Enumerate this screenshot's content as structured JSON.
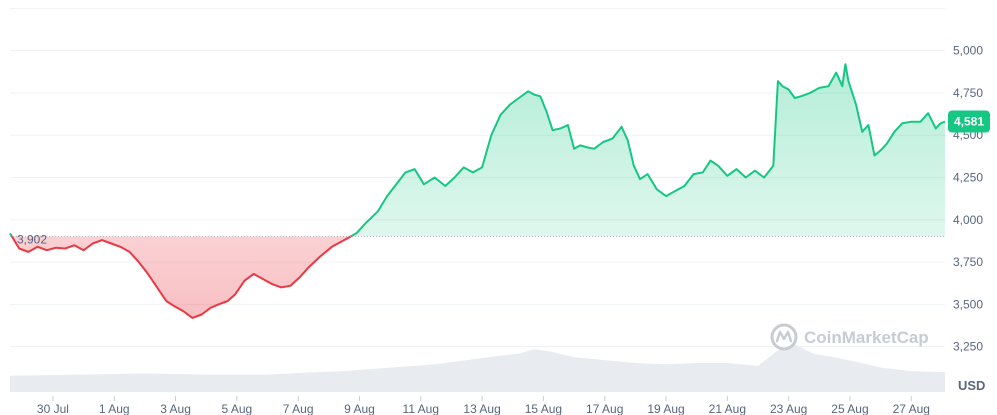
{
  "chart_data": {
    "type": "area",
    "currency_label": "USD",
    "watermark": "CoinMarketCap",
    "reference_value": 3902,
    "reference_label": "3,902",
    "current_value": 4581,
    "current_label": "4,581",
    "ylim": [
      3100,
      5270
    ],
    "y_ticks": [
      {
        "value": 3250,
        "label": "3,250"
      },
      {
        "value": 3500,
        "label": "3,500"
      },
      {
        "value": 3750,
        "label": "3,750"
      },
      {
        "value": 4000,
        "label": "4,000"
      },
      {
        "value": 4250,
        "label": "4,250"
      },
      {
        "value": 4500,
        "label": "4,500"
      },
      {
        "value": 4750,
        "label": "4,750"
      },
      {
        "value": 5000,
        "label": "5,000"
      }
    ],
    "x_range": [
      28.6,
      59.1
    ],
    "x_ticks": [
      {
        "value": 30,
        "label": "30 Jul"
      },
      {
        "value": 32,
        "label": "1 Aug"
      },
      {
        "value": 34,
        "label": "3 Aug"
      },
      {
        "value": 36,
        "label": "5 Aug"
      },
      {
        "value": 38,
        "label": "7 Aug"
      },
      {
        "value": 40,
        "label": "9 Aug"
      },
      {
        "value": 42,
        "label": "11 Aug"
      },
      {
        "value": 44,
        "label": "13 Aug"
      },
      {
        "value": 46,
        "label": "15 Aug"
      },
      {
        "value": 48,
        "label": "17 Aug"
      },
      {
        "value": 50,
        "label": "19 Aug"
      },
      {
        "value": 52,
        "label": "21 Aug"
      },
      {
        "value": 54,
        "label": "23 Aug"
      },
      {
        "value": 56,
        "label": "25 Aug"
      },
      {
        "value": 58,
        "label": "27 Aug"
      }
    ],
    "series": [
      {
        "x": [
          28.6,
          28.9,
          29.2,
          29.5,
          29.8,
          30.1,
          30.4,
          30.7,
          31.0,
          31.3,
          31.6,
          31.9,
          32.2,
          32.5,
          32.8,
          33.1,
          33.4,
          33.7,
          33.95,
          34.25,
          34.55,
          34.85,
          35.15,
          35.4,
          35.7,
          35.95,
          36.25,
          36.55,
          36.85,
          37.15,
          37.45,
          37.75,
          38.05,
          38.35,
          38.7,
          39.1,
          39.5,
          39.9,
          40.2,
          40.6,
          40.9,
          41.2,
          41.5,
          41.8,
          42.1,
          42.45,
          42.8,
          43.1,
          43.4,
          43.7,
          44.0,
          44.3,
          44.6,
          44.9,
          45.2,
          45.5,
          45.7,
          45.9,
          46.1,
          46.3,
          46.55,
          46.8,
          47.0,
          47.2,
          47.4,
          47.65,
          47.95,
          48.25,
          48.55,
          48.75,
          48.95,
          49.15,
          49.4,
          49.7,
          50.0,
          50.3,
          50.6,
          50.9,
          51.2,
          51.45,
          51.7,
          52.0,
          52.3,
          52.6,
          52.9,
          53.2,
          53.5,
          53.65,
          53.8,
          54.0,
          54.2,
          54.4,
          54.7,
          55.0,
          55.3,
          55.55,
          55.75,
          55.85,
          55.95,
          56.2,
          56.4,
          56.6,
          56.8,
          57.0,
          57.2,
          57.45,
          57.7,
          58.0,
          58.3,
          58.55,
          58.8,
          58.95,
          59.1
        ],
        "y": [
          3920,
          3830,
          3810,
          3840,
          3820,
          3835,
          3830,
          3850,
          3820,
          3860,
          3880,
          3860,
          3840,
          3810,
          3750,
          3680,
          3600,
          3520,
          3490,
          3460,
          3420,
          3440,
          3480,
          3500,
          3520,
          3560,
          3640,
          3680,
          3650,
          3620,
          3600,
          3610,
          3660,
          3720,
          3780,
          3840,
          3880,
          3920,
          3980,
          4050,
          4140,
          4210,
          4280,
          4300,
          4210,
          4250,
          4200,
          4250,
          4310,
          4280,
          4310,
          4500,
          4620,
          4680,
          4720,
          4760,
          4740,
          4730,
          4640,
          4530,
          4540,
          4560,
          4420,
          4440,
          4430,
          4420,
          4460,
          4480,
          4550,
          4470,
          4320,
          4240,
          4270,
          4180,
          4140,
          4170,
          4200,
          4270,
          4280,
          4350,
          4320,
          4260,
          4300,
          4250,
          4290,
          4250,
          4320,
          4820,
          4790,
          4770,
          4720,
          4730,
          4750,
          4780,
          4790,
          4870,
          4790,
          4920,
          4820,
          4680,
          4520,
          4560,
          4380,
          4410,
          4450,
          4520,
          4570,
          4580,
          4580,
          4630,
          4540,
          4570,
          4581
        ]
      }
    ],
    "volume": [
      {
        "x": 28.6,
        "v": 0.28
      },
      {
        "x": 31.0,
        "v": 0.3
      },
      {
        "x": 33.0,
        "v": 0.32
      },
      {
        "x": 35.0,
        "v": 0.3
      },
      {
        "x": 37.0,
        "v": 0.3
      },
      {
        "x": 38.5,
        "v": 0.34
      },
      {
        "x": 39.5,
        "v": 0.36
      },
      {
        "x": 40.5,
        "v": 0.4
      },
      {
        "x": 41.5,
        "v": 0.44
      },
      {
        "x": 42.5,
        "v": 0.48
      },
      {
        "x": 43.5,
        "v": 0.55
      },
      {
        "x": 44.5,
        "v": 0.62
      },
      {
        "x": 45.2,
        "v": 0.66
      },
      {
        "x": 45.7,
        "v": 0.74
      },
      {
        "x": 46.2,
        "v": 0.7
      },
      {
        "x": 47.0,
        "v": 0.6
      },
      {
        "x": 48.0,
        "v": 0.55
      },
      {
        "x": 49.0,
        "v": 0.5
      },
      {
        "x": 50.0,
        "v": 0.48
      },
      {
        "x": 51.0,
        "v": 0.5
      },
      {
        "x": 52.0,
        "v": 0.5
      },
      {
        "x": 53.0,
        "v": 0.45
      },
      {
        "x": 53.6,
        "v": 0.7
      },
      {
        "x": 54.2,
        "v": 0.82
      },
      {
        "x": 54.8,
        "v": 0.66
      },
      {
        "x": 55.5,
        "v": 0.6
      },
      {
        "x": 56.2,
        "v": 0.52
      },
      {
        "x": 57.0,
        "v": 0.42
      },
      {
        "x": 58.0,
        "v": 0.36
      },
      {
        "x": 59.1,
        "v": 0.34
      }
    ]
  },
  "colors": {
    "up_line": "#16c784",
    "down_line": "#ea3943",
    "grid": "#eff2f5",
    "axis_text": "#58667e",
    "ref_line": "#a6b0c3",
    "volume": "#e8ebef",
    "watermark": "#c7ccd3"
  }
}
